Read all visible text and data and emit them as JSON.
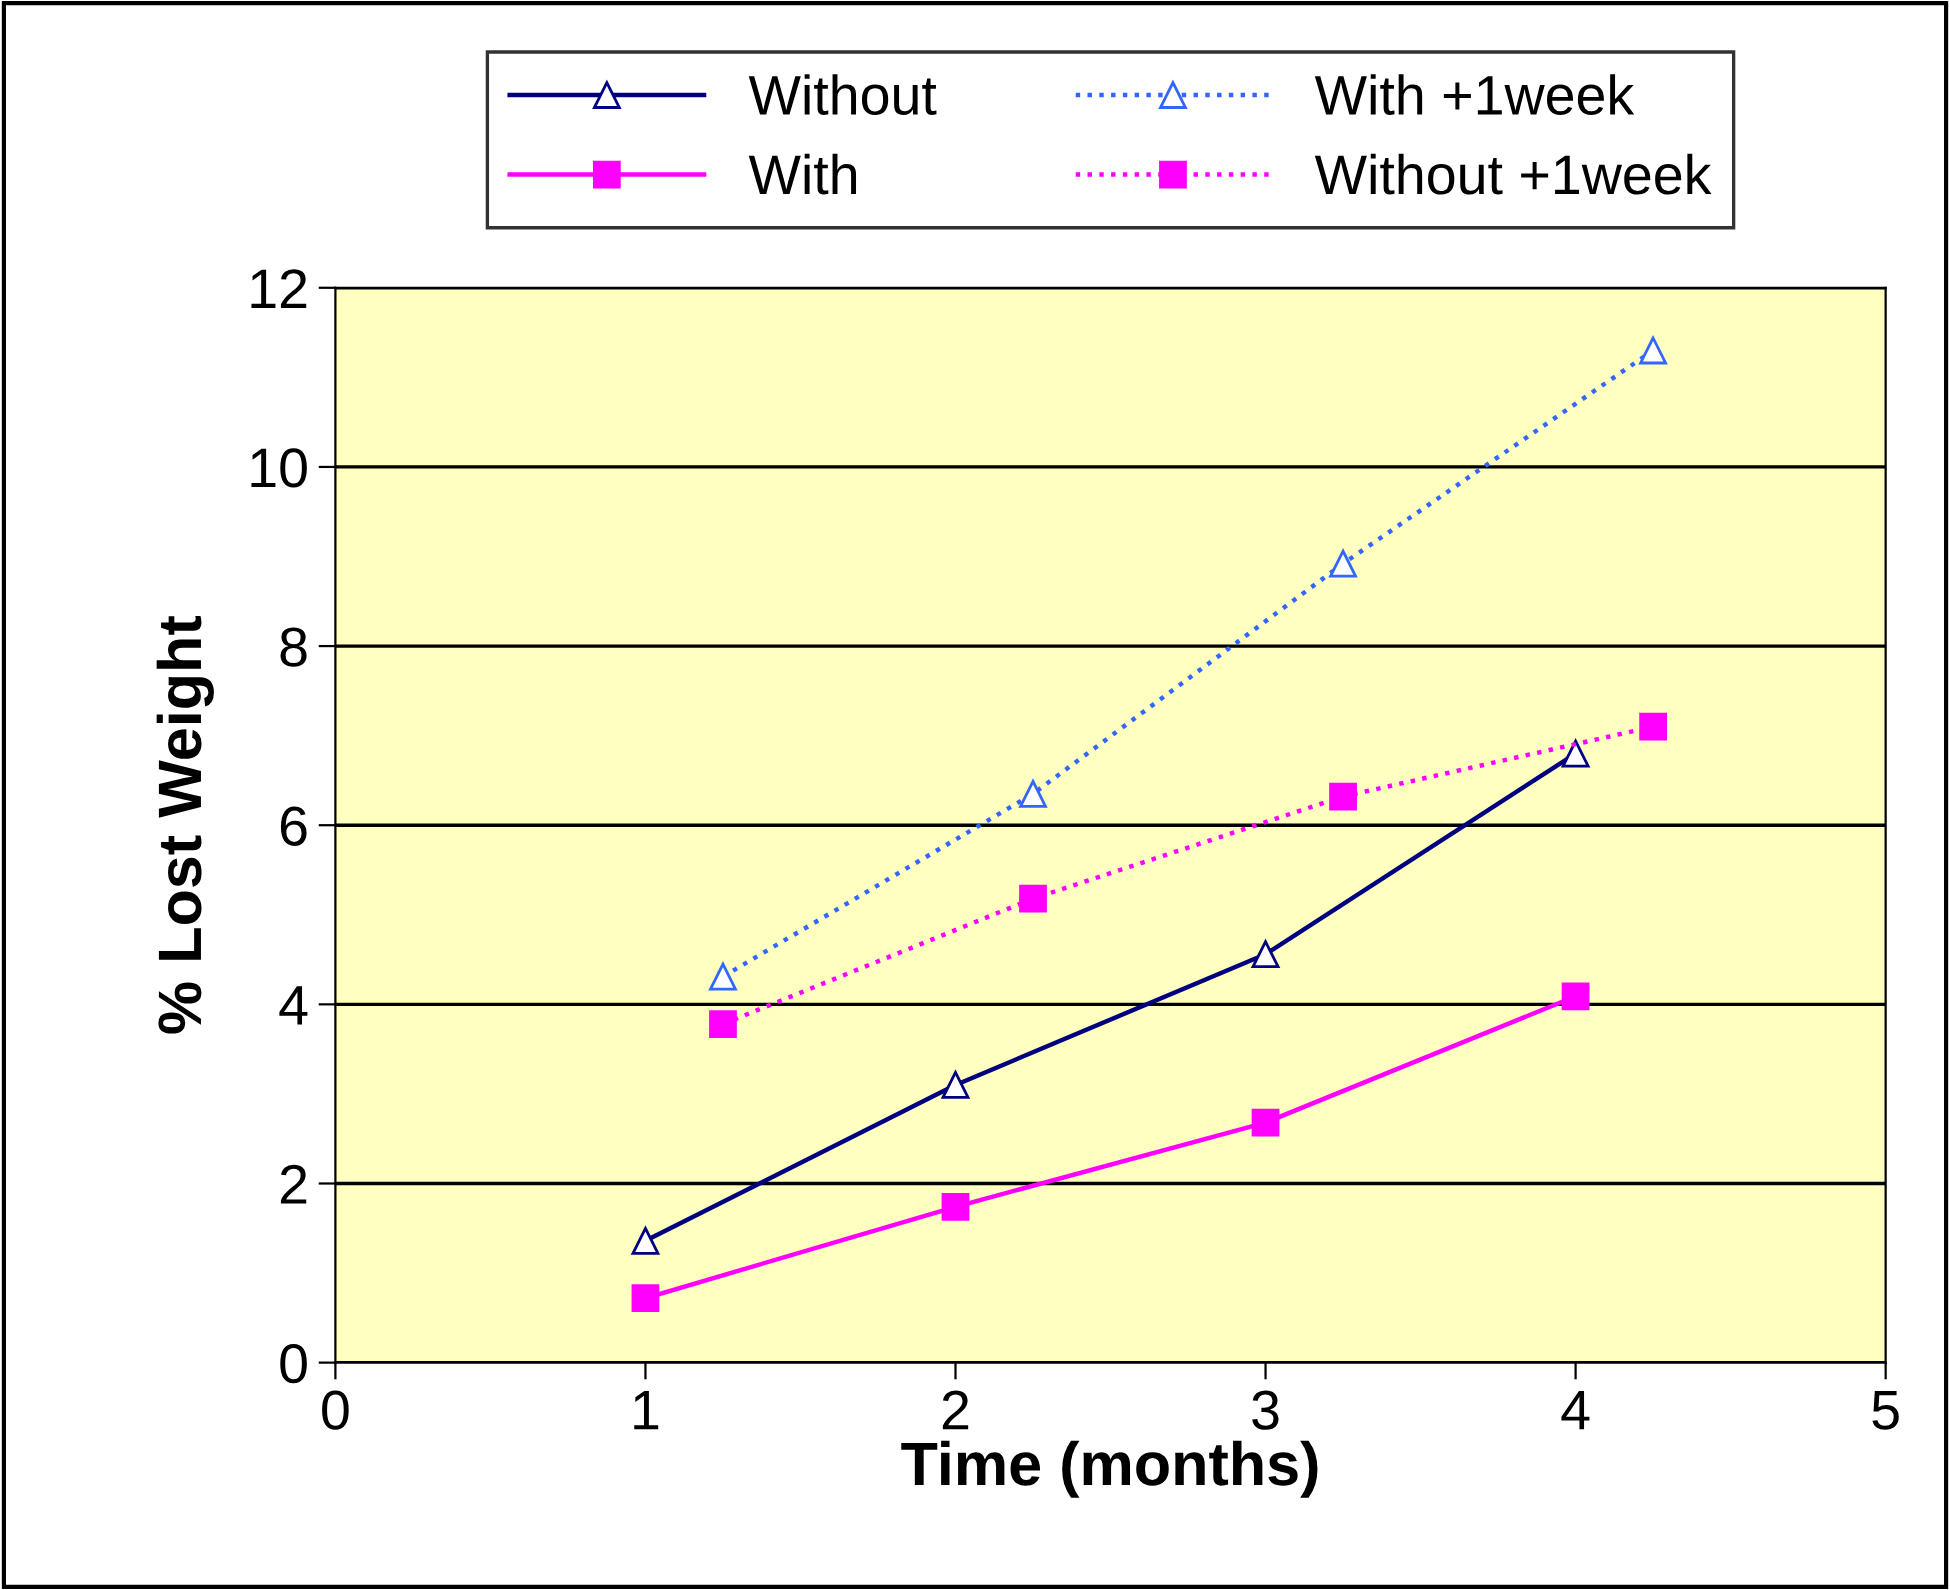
{
  "chart_data": {
    "type": "line",
    "xlabel": "Time (months)",
    "ylabel": "% Lost Weight",
    "xlim": [
      0,
      5
    ],
    "xticks": [
      0,
      1,
      2,
      3,
      4,
      5
    ],
    "ylim": [
      0,
      12
    ],
    "yticks": [
      0,
      2,
      4,
      6,
      8,
      10,
      12
    ],
    "grid": "y",
    "legend": "top",
    "series": [
      {
        "name": "Without",
        "color": "#000080",
        "marker": "triangle",
        "line_style": "solid",
        "x": [
          1,
          2,
          3,
          4
        ],
        "values": [
          1.36,
          3.1,
          4.56,
          6.8
        ]
      },
      {
        "name": "With",
        "color": "#ff00ff",
        "marker": "square",
        "line_style": "solid",
        "x": [
          1,
          2,
          3,
          4
        ],
        "values": [
          0.72,
          1.74,
          2.68,
          4.09
        ]
      },
      {
        "name": "With +1week",
        "color": "#3366ff",
        "marker": "triangle",
        "line_style": "dotted",
        "x": [
          1.25,
          2.25,
          3.25,
          4.25
        ],
        "values": [
          4.31,
          6.35,
          8.92,
          11.3
        ]
      },
      {
        "name": "Without +1week",
        "color": "#ff00ff",
        "marker": "square",
        "line_style": "dotted",
        "x": [
          1.25,
          2.25,
          3.25,
          4.25
        ],
        "values": [
          3.78,
          5.18,
          6.32,
          7.1
        ]
      }
    ]
  }
}
